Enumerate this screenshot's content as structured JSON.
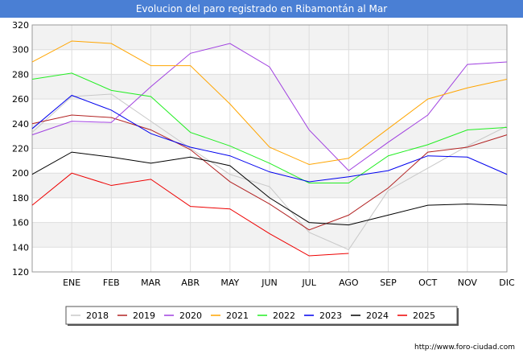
{
  "chart_data": {
    "type": "line",
    "title": "Evolucion del paro registrado en Ribamontán al Mar",
    "categories": [
      "",
      "ENE",
      "FEB",
      "MAR",
      "ABR",
      "MAY",
      "JUN",
      "JUL",
      "AGO",
      "SEP",
      "OCT",
      "NOV",
      "DIC"
    ],
    "ylim": [
      120,
      320
    ],
    "yticks": [
      120,
      140,
      160,
      180,
      200,
      220,
      240,
      260,
      280,
      300,
      320
    ],
    "legend_position": "bottom",
    "series": [
      {
        "name": "2018",
        "color": "#c8c8c8",
        "values": [
          233,
          262,
          264,
          242,
          220,
          199,
          189,
          152,
          138,
          186,
          204,
          222,
          238
        ]
      },
      {
        "name": "2019",
        "color": "#b22222",
        "values": [
          240,
          247,
          245,
          235,
          219,
          193,
          175,
          154,
          166,
          188,
          217,
          221,
          231
        ]
      },
      {
        "name": "2020",
        "color": "#a040e0",
        "values": [
          231,
          242,
          241,
          270,
          297,
          305,
          286,
          235,
          202,
          225,
          247,
          288,
          290
        ]
      },
      {
        "name": "2021",
        "color": "#ffa500",
        "values": [
          290,
          307,
          305,
          287,
          287,
          256,
          221,
          207,
          212,
          236,
          260,
          269,
          276
        ]
      },
      {
        "name": "2022",
        "color": "#22ee22",
        "values": [
          276,
          281,
          267,
          262,
          233,
          222,
          208,
          192,
          192,
          214,
          223,
          235,
          237
        ]
      },
      {
        "name": "2023",
        "color": "#0000ee",
        "values": [
          236,
          263,
          251,
          232,
          221,
          214,
          201,
          193,
          197,
          202,
          214,
          213,
          199
        ]
      },
      {
        "name": "2024",
        "color": "#000000",
        "values": [
          199,
          217,
          213,
          208,
          213,
          206,
          180,
          160,
          158,
          166,
          174,
          175,
          174
        ]
      },
      {
        "name": "2025",
        "color": "#ee0000",
        "values": [
          174,
          200,
          190,
          195,
          173,
          171,
          151,
          133,
          135,
          null,
          null,
          null,
          null
        ]
      }
    ]
  },
  "footer": {
    "source": "http://www.foro-ciudad.com"
  }
}
